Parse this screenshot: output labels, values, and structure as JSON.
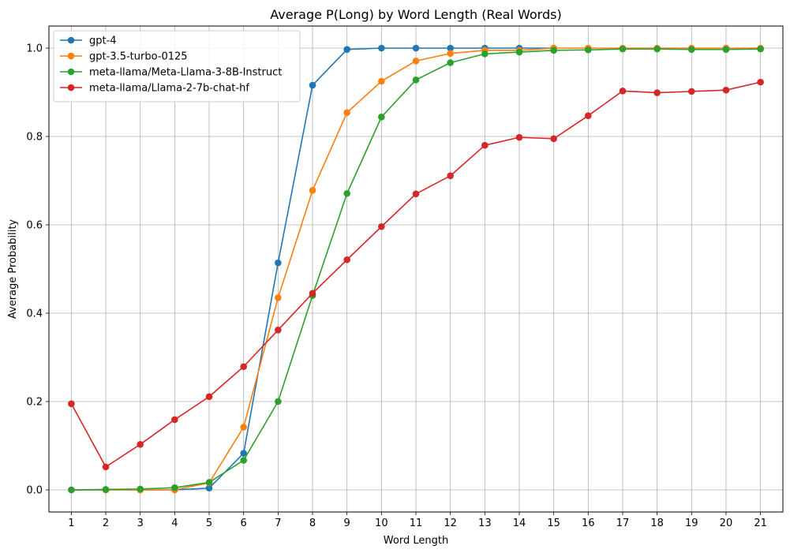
{
  "chart_data": {
    "type": "line",
    "title": "Average P(Long) by Word Length (Real Words)",
    "xlabel": "Word Length",
    "ylabel": "Average Probability",
    "x": [
      1,
      2,
      3,
      4,
      5,
      6,
      7,
      8,
      9,
      10,
      11,
      12,
      13,
      14,
      15,
      16,
      17,
      18,
      19,
      20,
      21
    ],
    "xlim": [
      0.35,
      21.65
    ],
    "ylim": [
      -0.05,
      1.05
    ],
    "yticks": [
      0.0,
      0.2,
      0.4,
      0.6,
      0.8,
      1.0
    ],
    "ytick_labels": [
      "0.0",
      "0.2",
      "0.4",
      "0.6",
      "0.8",
      "1.0"
    ],
    "grid": true,
    "legend_position": "top-left",
    "series": [
      {
        "name": "gpt-4",
        "color": "#1f77b4",
        "x": [
          1,
          2,
          3,
          4,
          5,
          6,
          7,
          8,
          9,
          10,
          11,
          12,
          13,
          14,
          15
        ],
        "values": [
          0.0,
          0.0,
          0.0,
          0.0,
          0.004,
          0.083,
          0.514,
          0.916,
          0.997,
          1.0,
          1.0,
          1.0,
          1.0,
          1.0,
          1.0
        ]
      },
      {
        "name": "gpt-3.5-turbo-0125",
        "color": "#ff7f0e",
        "x": [
          1,
          2,
          3,
          4,
          5,
          6,
          7,
          8,
          9,
          10,
          11,
          12,
          13,
          14,
          15,
          16,
          17,
          18,
          19,
          20,
          21
        ],
        "values": [
          0.0,
          0.0,
          0.0,
          0.0,
          0.016,
          0.142,
          0.435,
          0.678,
          0.854,
          0.925,
          0.971,
          0.988,
          0.995,
          0.995,
          1.0,
          1.0,
          1.0,
          1.0,
          1.0,
          1.0,
          1.0
        ]
      },
      {
        "name": "meta-llama/Meta-Llama-3-8B-Instruct",
        "color": "#2ca02c",
        "x": [
          1,
          2,
          3,
          4,
          5,
          6,
          7,
          8,
          9,
          10,
          11,
          12,
          13,
          14,
          15,
          16,
          17,
          18,
          19,
          20,
          21
        ],
        "values": [
          0.0,
          0.001,
          0.002,
          0.005,
          0.017,
          0.067,
          0.2,
          0.44,
          0.671,
          0.844,
          0.928,
          0.967,
          0.987,
          0.991,
          0.995,
          0.996,
          0.998,
          0.998,
          0.997,
          0.997,
          0.998
        ]
      },
      {
        "name": "meta-llama/Llama-2-7b-chat-hf",
        "color": "#d62728",
        "x": [
          1,
          2,
          3,
          4,
          5,
          6,
          7,
          8,
          9,
          10,
          11,
          12,
          13,
          14,
          15,
          16,
          17,
          18,
          19,
          20,
          21
        ],
        "values": [
          0.195,
          0.052,
          0.103,
          0.159,
          0.211,
          0.279,
          0.362,
          0.445,
          0.521,
          0.596,
          0.67,
          0.711,
          0.78,
          0.798,
          0.795,
          0.847,
          0.903,
          0.899,
          0.902,
          0.905,
          0.923
        ]
      }
    ]
  }
}
